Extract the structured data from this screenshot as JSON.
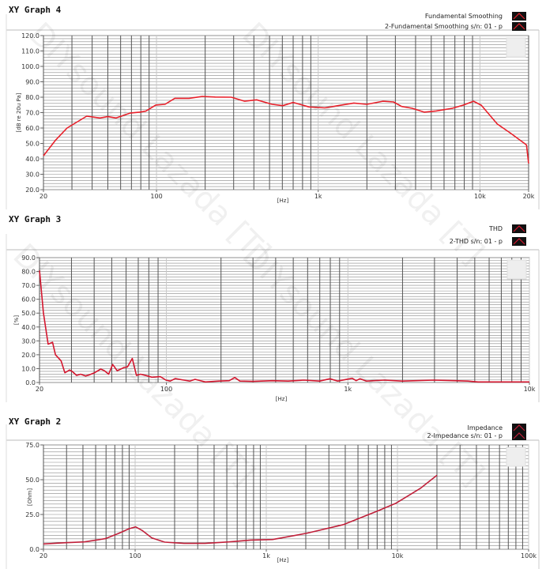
{
  "watermark": "DIYsound Lazada [T]",
  "chart_data": [
    {
      "type": "line",
      "title": "XY Graph 4",
      "xlabel": "[Hz]",
      "ylabel": "[dB re 20u Pa]",
      "xscale": "log",
      "xlim": [
        20,
        20000
      ],
      "ylim": [
        20,
        120
      ],
      "yticks": [
        20,
        30,
        40,
        50,
        60,
        70,
        80,
        90,
        100,
        110,
        120
      ],
      "ytick_labels": [
        "20.0",
        "30.0",
        "40.0",
        "50.0",
        "60.0",
        "70.0",
        "80.0",
        "90.0",
        "100.0",
        "110.0",
        "120.0"
      ],
      "xticks": [
        20,
        100,
        1000,
        10000,
        20000
      ],
      "xtick_labels": [
        "20",
        "100",
        "1k",
        "10k",
        "20k"
      ],
      "ygrid_step": 2,
      "legend": [
        "Fundamental  Smoothing",
        "2-Fundamental  Smoothing s/n: 01 - p"
      ],
      "legend_position": "top-right",
      "color": "#e8202a",
      "series": [
        {
          "name": "Fundamental  Smoothing",
          "x": [
            20,
            23.7,
            28,
            37,
            44.7,
            50,
            56.3,
            68.6,
            78.6,
            86,
            98.9,
            112.8,
            129.8,
            159,
            192,
            231,
            290,
            351,
            416,
            519,
            603,
            700,
            877,
            1099,
            1325,
            1660,
            2000,
            2510,
            2920,
            3280,
            3810,
            4520,
            5370,
            6750,
            7850,
            9130,
            10200,
            12800,
            15500,
            19400,
            20000
          ],
          "y": [
            42,
            52,
            60,
            67.7,
            66.5,
            67.4,
            66.5,
            69.7,
            70.3,
            71,
            74.9,
            75.4,
            79.3,
            79.3,
            80.5,
            80.1,
            80,
            77.4,
            78.3,
            75.4,
            74.5,
            76.6,
            73.7,
            73.1,
            74.5,
            76.2,
            75.4,
            77.4,
            76.9,
            74,
            72.8,
            70.3,
            71.1,
            72.8,
            74.8,
            77.4,
            74.8,
            62.6,
            56.6,
            49,
            37
          ]
        }
      ]
    },
    {
      "type": "line",
      "title": "XY Graph 3",
      "xlabel": "[Hz]",
      "ylabel": "[%]",
      "xscale": "log",
      "xlim": [
        20,
        10000
      ],
      "ylim": [
        0,
        90
      ],
      "yticks": [
        0,
        10,
        20,
        30,
        40,
        50,
        60,
        70,
        80,
        90
      ],
      "ytick_labels": [
        "0.0",
        "10.0",
        "20.0",
        "30.0",
        "40.0",
        "50.0",
        "60.0",
        "70.0",
        "80.0",
        "90.0"
      ],
      "xticks": [
        20,
        100,
        1000,
        10000
      ],
      "xtick_labels": [
        "20",
        "100",
        "1k",
        "10k"
      ],
      "ygrid_step": 2,
      "legend": [
        "THD",
        "2-THD s/n: 01 - p"
      ],
      "legend_position": "top-right",
      "color": "#d4162e",
      "series": [
        {
          "name": "THD",
          "x": [
            20,
            21,
            22.3,
            23.6,
            24.5,
            26.3,
            27.6,
            29.3,
            30.3,
            32,
            33.7,
            35.9,
            37.7,
            40.2,
            43.5,
            45.6,
            48.1,
            50.6,
            53.6,
            58.5,
            61,
            64.9,
            68.4,
            72.1,
            78.8,
            83.2,
            92.6,
            99.4,
            105,
            111.8,
            125,
            134.5,
            144,
            164,
            194,
            222,
            238,
            254,
            300,
            384,
            469,
            572,
            698,
            797,
            879,
            1057,
            1110,
            1165,
            1265,
            1590,
            2000,
            2980,
            3880,
            4580,
            5220,
            10000
          ],
          "y": [
            80.8,
            50.4,
            27.6,
            29,
            20,
            15.6,
            7,
            9,
            8,
            5.1,
            6,
            4.7,
            5.5,
            7,
            9.7,
            8.5,
            6,
            13,
            8.5,
            10.8,
            11.2,
            17.3,
            5.1,
            6,
            4.7,
            3.8,
            4.2,
            1.7,
            1,
            2.8,
            1.7,
            1,
            2.3,
            0.4,
            1,
            1.3,
            3.6,
            1,
            0.8,
            1.3,
            1,
            1.7,
            1,
            2.7,
            1,
            3,
            1.3,
            2.7,
            1,
            1.7,
            1,
            1.7,
            1.3,
            1,
            0.4,
            0.4
          ]
        }
      ]
    },
    {
      "type": "line",
      "title": "XY Graph 2",
      "xlabel": "[Hz]",
      "ylabel": "[Ohm]",
      "xscale": "log",
      "xlim": [
        20,
        100000
      ],
      "ylim": [
        0,
        75
      ],
      "yticks": [
        0,
        25,
        50,
        75
      ],
      "ytick_labels": [
        "0.0",
        "25.0",
        "50.0",
        "75.0"
      ],
      "xticks": [
        20,
        100,
        1000,
        10000,
        100000
      ],
      "xtick_labels": [
        "20",
        "100",
        "1k",
        "10k",
        "100k"
      ],
      "ygrid_step": 2.5,
      "legend": [
        "Impedance",
        "2-Impedance s/n: 01 - p"
      ],
      "legend_position": "top-right",
      "color": "#c0203a",
      "series": [
        {
          "name": "Impedance",
          "x": [
            20,
            29.6,
            41.1,
            59.2,
            75,
            90,
            101,
            114,
            134,
            168,
            236,
            341,
            521,
            759,
            1116,
            2020,
            3880,
            7050,
            9780,
            14900,
            20000
          ],
          "y": [
            3.8,
            4.7,
            5.3,
            7.6,
            11.4,
            14.8,
            16.1,
            13.3,
            8.2,
            5.1,
            4.2,
            4.2,
            5.3,
            6.6,
            7,
            11.4,
            17.7,
            27.5,
            33.2,
            43.7,
            53.2
          ]
        }
      ]
    }
  ]
}
